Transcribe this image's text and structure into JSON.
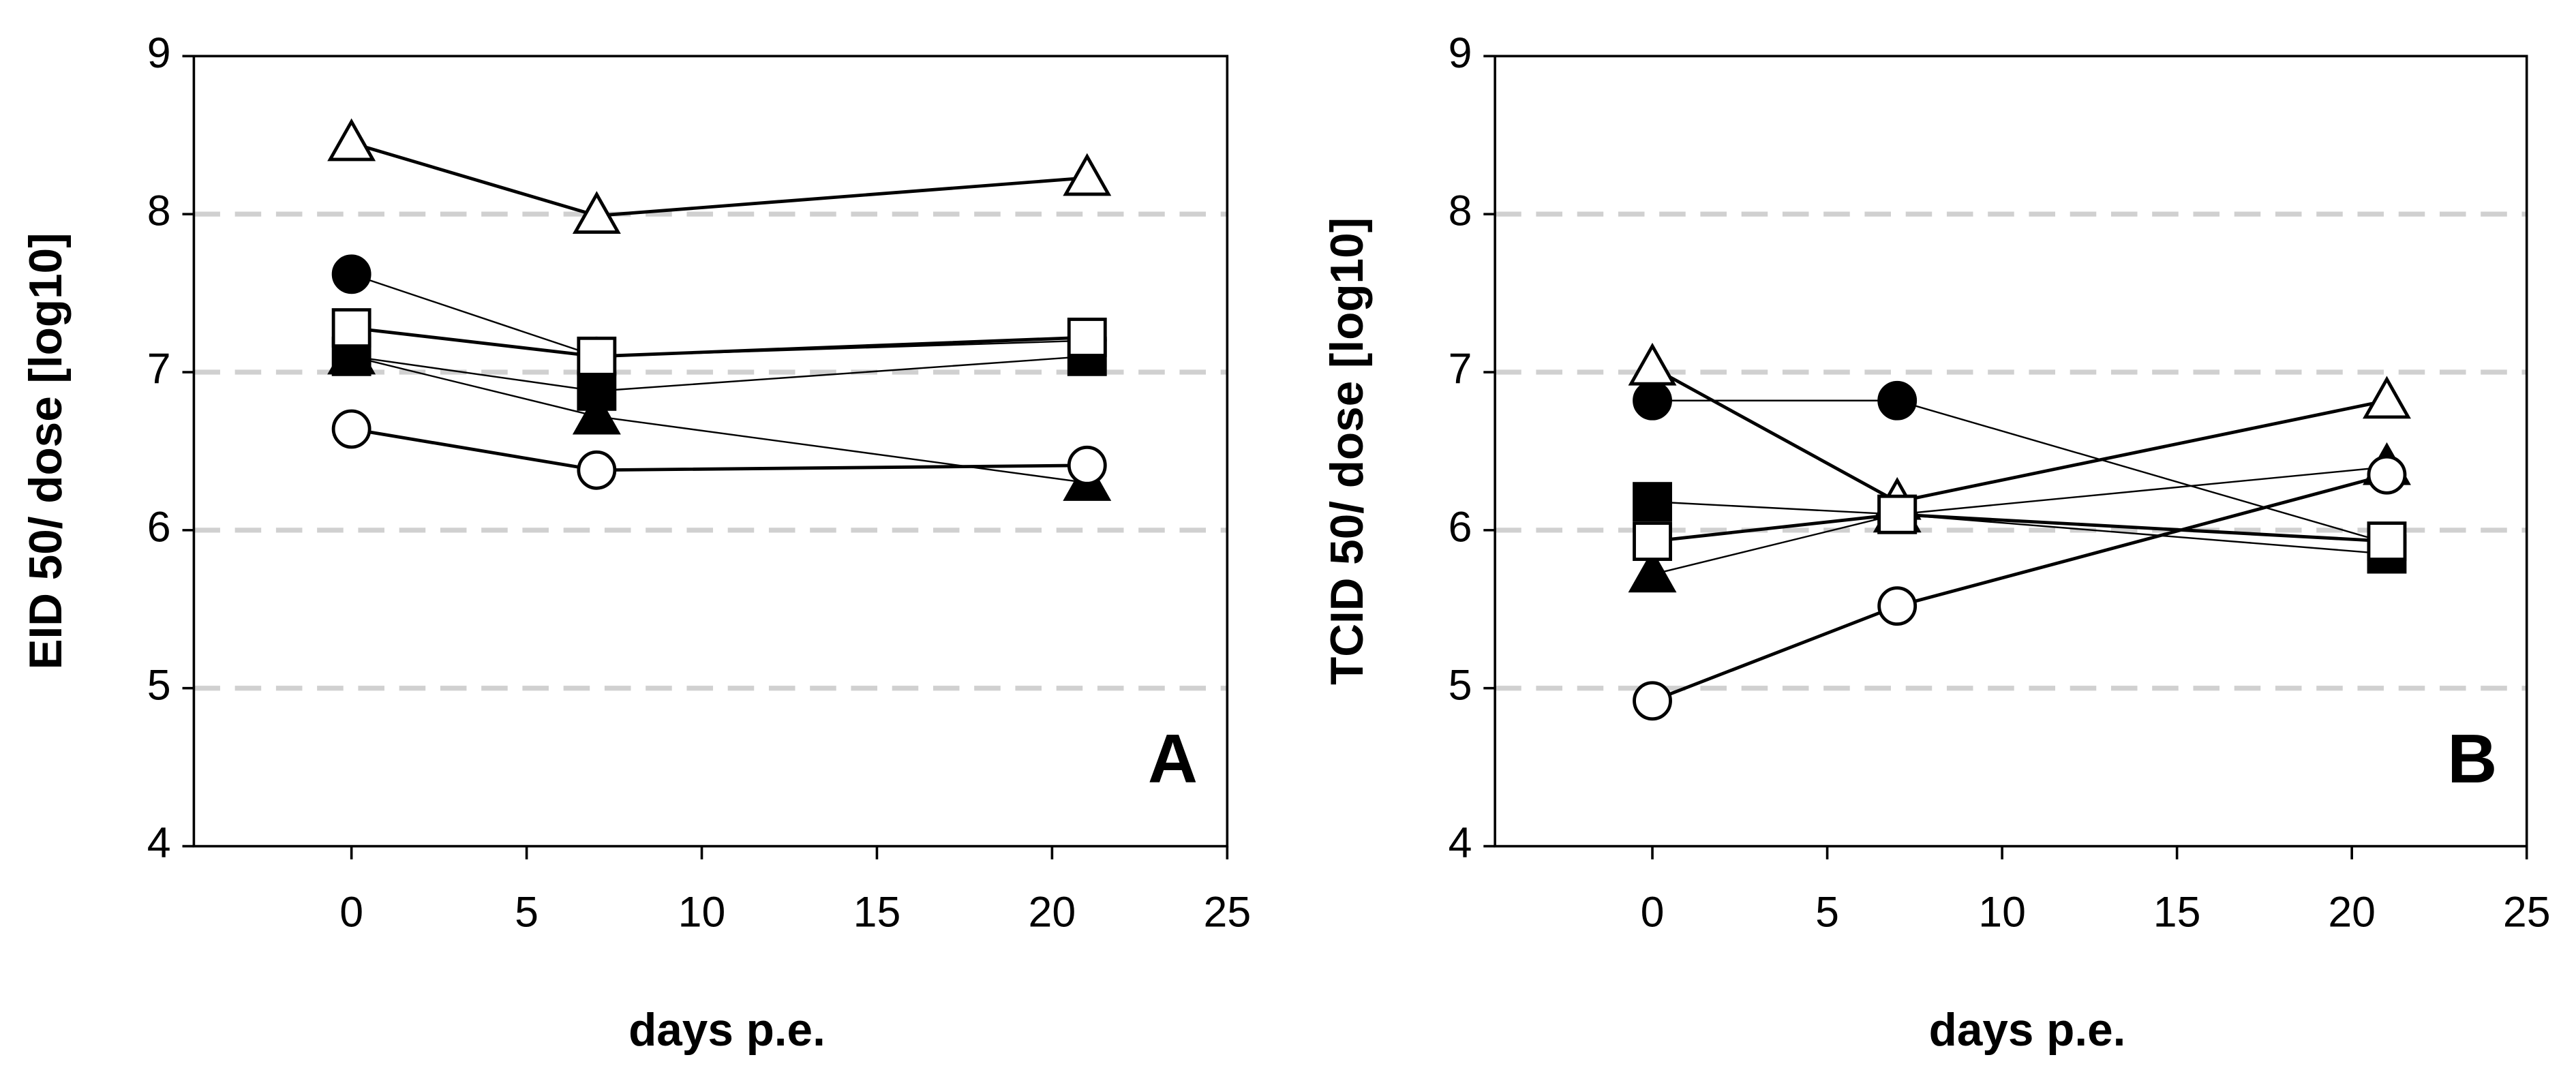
{
  "chart_data": [
    {
      "type": "line",
      "panel_label": "A",
      "ylabel": "EID 50/ dose [log10]",
      "xlabel": "days p.e.",
      "x": [
        0,
        7,
        21
      ],
      "xlim": [
        -4.5,
        25
      ],
      "xticks": [
        0,
        5,
        10,
        15,
        20,
        25
      ],
      "ylim": [
        4,
        9
      ],
      "yticks": [
        4,
        5,
        6,
        7,
        8,
        9
      ],
      "grid": true,
      "series": [
        {
          "marker": "triangle",
          "filled": false,
          "color": "#000000",
          "line_width": 2,
          "values": [
            8.45,
            7.99,
            8.23
          ]
        },
        {
          "marker": "circle",
          "filled": true,
          "color": "#000000",
          "line_width": 1,
          "values": [
            7.62,
            7.1,
            7.2
          ]
        },
        {
          "marker": "square",
          "filled": true,
          "color": "#000000",
          "line_width": 1,
          "values": [
            7.1,
            6.88,
            7.1
          ]
        },
        {
          "marker": "triangle",
          "filled": true,
          "color": "#000000",
          "line_width": 1,
          "values": [
            7.1,
            6.72,
            6.3
          ]
        },
        {
          "marker": "square",
          "filled": false,
          "color": "#000000",
          "line_width": 2,
          "values": [
            7.28,
            7.1,
            7.22
          ]
        },
        {
          "marker": "circle",
          "filled": false,
          "color": "#000000",
          "line_width": 2,
          "values": [
            6.64,
            6.38,
            6.41
          ]
        }
      ]
    },
    {
      "type": "line",
      "panel_label": "B",
      "ylabel": "TCID 50/ dose [log10]",
      "xlabel": "days p.e.",
      "x": [
        0,
        7,
        21
      ],
      "xlim": [
        -4.5,
        25
      ],
      "xticks": [
        0,
        5,
        10,
        15,
        20,
        25
      ],
      "ylim": [
        4,
        9
      ],
      "yticks": [
        4,
        5,
        6,
        7,
        8,
        9
      ],
      "grid": true,
      "series": [
        {
          "marker": "circle",
          "filled": true,
          "color": "#000000",
          "line_width": 1,
          "values": [
            6.82,
            6.82,
            5.92
          ]
        },
        {
          "marker": "square",
          "filled": true,
          "color": "#000000",
          "line_width": 1,
          "values": [
            6.18,
            6.1,
            5.85
          ]
        },
        {
          "marker": "triangle",
          "filled": true,
          "color": "#000000",
          "line_width": 1,
          "values": [
            5.72,
            6.1,
            6.4
          ]
        },
        {
          "marker": "triangle",
          "filled": false,
          "color": "#000000",
          "line_width": 2,
          "values": [
            7.03,
            6.18,
            6.82
          ]
        },
        {
          "marker": "square",
          "filled": false,
          "color": "#000000",
          "line_width": 2,
          "values": [
            5.93,
            6.1,
            5.93
          ]
        },
        {
          "marker": "circle",
          "filled": false,
          "color": "#000000",
          "line_width": 2,
          "values": [
            4.92,
            5.52,
            6.35
          ]
        }
      ]
    }
  ]
}
